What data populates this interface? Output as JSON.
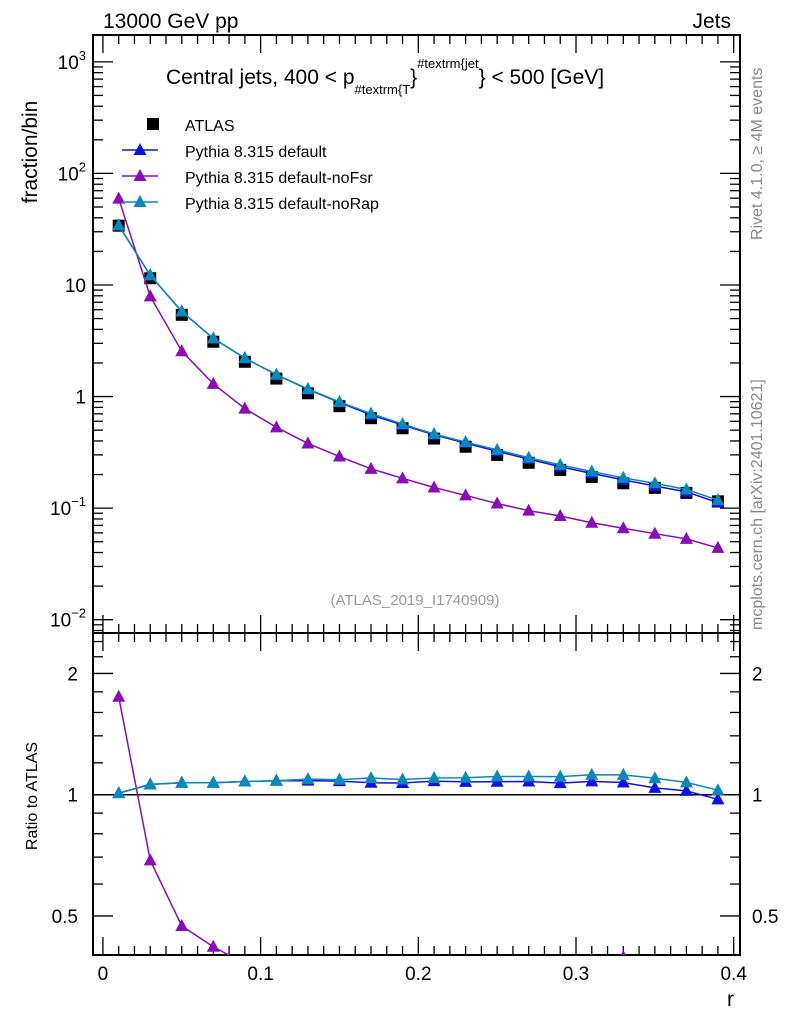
{
  "header": {
    "left": "13000 GeV pp",
    "right": "Jets"
  },
  "side_labels": {
    "rivet": "Rivet 4.1.0, ≥ 4M events",
    "mcplots": "mcplots.cern.ch [arXiv:2401.10621]"
  },
  "chart_data": {
    "type": "line",
    "title_parts": {
      "pre": "Central jets, 400 < p",
      "sub": "#textrm{T",
      "sup": "#textrm{jet",
      "post": "} < 500 [GeV]"
    },
    "analysis_label": "(ATLAS_2019_I1740909)",
    "xlabel": "r",
    "ylabel": "fraction/bin",
    "ratio_ylabel": "Ratio to ATLAS",
    "xlim": [
      -0.0063,
      0.404
    ],
    "ylim": [
      0.0076,
      1740
    ],
    "yscale": "log",
    "ratio_ylim": [
      0.4,
      2.52
    ],
    "ratio_yscale": "log",
    "x_ticks": [
      0,
      0.1,
      0.2,
      0.3,
      0.4
    ],
    "x_tick_labels": [
      "0",
      "0.1",
      "0.2",
      "0.3",
      "0.4"
    ],
    "y_ticks": [
      {
        "value": 1000,
        "base": "10",
        "exp": "3"
      },
      {
        "value": 100,
        "base": "10",
        "exp": "2"
      },
      {
        "value": 10,
        "base": "10",
        "exp": ""
      },
      {
        "value": 1,
        "base": "1",
        "exp": ""
      },
      {
        "value": 0.1,
        "base": "10",
        "exp": "−1"
      },
      {
        "value": 0.01,
        "base": "10",
        "exp": "−2"
      }
    ],
    "ratio_ticks": [
      {
        "value": 2,
        "label": "2"
      },
      {
        "value": 1,
        "label": "1"
      },
      {
        "value": 0.5,
        "label": "0.5"
      }
    ],
    "legend_placement": "top-left",
    "x": [
      0.01,
      0.03,
      0.05,
      0.07,
      0.09,
      0.11,
      0.13,
      0.15,
      0.17,
      0.19,
      0.21,
      0.23,
      0.25,
      0.27,
      0.29,
      0.31,
      0.33,
      0.35,
      0.37,
      0.39
    ],
    "reference": {
      "name": "ATLAS",
      "color": "#000000",
      "marker": "square",
      "values": [
        34,
        11.5,
        5.4,
        3.1,
        2.05,
        1.45,
        1.07,
        0.82,
        0.64,
        0.52,
        0.42,
        0.355,
        0.3,
        0.255,
        0.22,
        0.19,
        0.167,
        0.152,
        0.137,
        0.115
      ]
    },
    "series": [
      {
        "name": "Pythia 8.315 default",
        "color": "#1010e0",
        "marker": "triangle",
        "values": [
          34.3,
          12.2,
          5.78,
          3.32,
          2.21,
          1.57,
          1.16,
          0.886,
          0.685,
          0.556,
          0.454,
          0.382,
          0.323,
          0.275,
          0.235,
          0.205,
          0.179,
          0.158,
          0.14,
          0.112
        ]
      },
      {
        "name": "Pythia 8.315 default-noFsr",
        "color": "#8a0cb4",
        "marker": "triangle",
        "values": [
          59.5,
          7.9,
          2.55,
          1.3,
          0.78,
          0.53,
          0.38,
          0.29,
          0.225,
          0.185,
          0.153,
          0.13,
          0.11,
          0.095,
          0.085,
          0.074,
          0.066,
          0.059,
          0.053,
          0.044
        ]
      },
      {
        "name": "Pythia 8.315 default-noRap",
        "color": "#0a88b8",
        "marker": "triangle",
        "values": [
          34.3,
          12.2,
          5.78,
          3.32,
          2.21,
          1.57,
          1.17,
          0.894,
          0.704,
          0.567,
          0.462,
          0.391,
          0.333,
          0.283,
          0.244,
          0.213,
          0.187,
          0.167,
          0.147,
          0.118
        ]
      }
    ]
  }
}
